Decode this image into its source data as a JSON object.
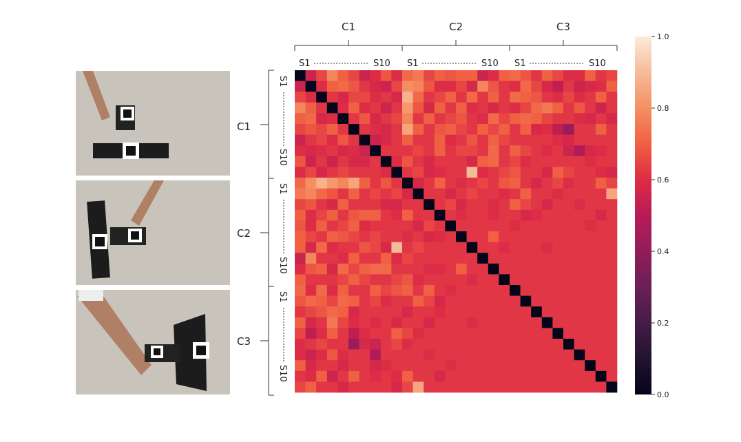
{
  "chart_data": {
    "type": "heatmap",
    "condition_labels": [
      "C1",
      "C2",
      "C3"
    ],
    "subject_first_label": "S1",
    "subject_last_label": "S10",
    "colorbar_ticks": [
      "0.0",
      "0.2",
      "0.4",
      "0.6",
      "0.8",
      "1.0"
    ],
    "colorbar_tick_values": [
      0.0,
      0.2,
      0.4,
      0.6,
      0.8,
      1.0
    ],
    "vmin": 0.0,
    "vmax": 1.0,
    "n": 30,
    "colormap": "rocket",
    "matrix": [
      [
        0.0,
        0.55,
        0.65,
        0.78,
        0.7,
        0.65,
        0.55,
        0.6,
        0.68,
        0.6,
        0.72,
        0.75,
        0.65,
        0.7,
        0.68,
        0.7,
        0.7,
        0.55,
        0.6,
        0.7,
        0.72,
        0.68,
        0.62,
        0.7,
        0.65,
        0.6,
        0.6,
        0.7,
        0.62,
        0.65
      ],
      [
        0.55,
        0.0,
        0.6,
        0.7,
        0.72,
        0.68,
        0.62,
        0.58,
        0.55,
        0.65,
        0.8,
        0.78,
        0.68,
        0.6,
        0.6,
        0.65,
        0.58,
        0.78,
        0.68,
        0.62,
        0.6,
        0.72,
        0.65,
        0.58,
        0.52,
        0.62,
        0.55,
        0.58,
        0.6,
        0.7
      ],
      [
        0.65,
        0.6,
        0.0,
        0.62,
        0.58,
        0.65,
        0.65,
        0.6,
        0.62,
        0.58,
        0.88,
        0.72,
        0.62,
        0.65,
        0.7,
        0.62,
        0.72,
        0.62,
        0.7,
        0.62,
        0.72,
        0.7,
        0.68,
        0.62,
        0.6,
        0.65,
        0.6,
        0.62,
        0.7,
        0.62
      ],
      [
        0.78,
        0.7,
        0.62,
        0.0,
        0.6,
        0.7,
        0.6,
        0.62,
        0.55,
        0.62,
        0.82,
        0.68,
        0.58,
        0.7,
        0.62,
        0.7,
        0.6,
        0.62,
        0.58,
        0.62,
        0.6,
        0.65,
        0.72,
        0.75,
        0.7,
        0.62,
        0.68,
        0.62,
        0.55,
        0.62
      ],
      [
        0.7,
        0.72,
        0.58,
        0.6,
        0.0,
        0.62,
        0.68,
        0.58,
        0.62,
        0.65,
        0.78,
        0.62,
        0.7,
        0.62,
        0.65,
        0.68,
        0.62,
        0.6,
        0.72,
        0.65,
        0.7,
        0.72,
        0.7,
        0.65,
        0.62,
        0.62,
        0.6,
        0.58,
        0.62,
        0.58
      ],
      [
        0.65,
        0.68,
        0.65,
        0.7,
        0.62,
        0.0,
        0.62,
        0.6,
        0.58,
        0.62,
        0.85,
        0.7,
        0.62,
        0.68,
        0.7,
        0.65,
        0.62,
        0.7,
        0.65,
        0.7,
        0.62,
        0.7,
        0.58,
        0.6,
        0.52,
        0.42,
        0.62,
        0.62,
        0.7,
        0.62
      ],
      [
        0.55,
        0.62,
        0.65,
        0.6,
        0.68,
        0.62,
        0.0,
        0.55,
        0.58,
        0.62,
        0.7,
        0.62,
        0.62,
        0.7,
        0.6,
        0.62,
        0.68,
        0.62,
        0.7,
        0.65,
        0.62,
        0.62,
        0.62,
        0.62,
        0.6,
        0.58,
        0.62,
        0.62,
        0.62,
        0.62
      ],
      [
        0.6,
        0.58,
        0.6,
        0.62,
        0.58,
        0.6,
        0.55,
        0.0,
        0.62,
        0.62,
        0.62,
        0.65,
        0.62,
        0.7,
        0.62,
        0.65,
        0.65,
        0.62,
        0.72,
        0.62,
        0.7,
        0.65,
        0.62,
        0.6,
        0.62,
        0.55,
        0.48,
        0.58,
        0.6,
        0.62
      ],
      [
        0.68,
        0.55,
        0.62,
        0.55,
        0.62,
        0.58,
        0.58,
        0.62,
        0.0,
        0.6,
        0.68,
        0.62,
        0.58,
        0.62,
        0.62,
        0.62,
        0.58,
        0.7,
        0.72,
        0.62,
        0.65,
        0.6,
        0.62,
        0.62,
        0.62,
        0.62,
        0.62,
        0.6,
        0.62,
        0.62
      ],
      [
        0.6,
        0.65,
        0.58,
        0.62,
        0.65,
        0.62,
        0.62,
        0.62,
        0.6,
        0.0,
        0.62,
        0.65,
        0.58,
        0.6,
        0.62,
        0.62,
        0.9,
        0.6,
        0.62,
        0.65,
        0.68,
        0.62,
        0.62,
        0.58,
        0.7,
        0.65,
        0.62,
        0.62,
        0.6,
        0.58
      ],
      [
        0.72,
        0.8,
        0.88,
        0.82,
        0.78,
        0.85,
        0.7,
        0.62,
        0.68,
        0.62,
        0.0,
        0.58,
        0.62,
        0.7,
        0.62,
        0.6,
        0.62,
        0.65,
        0.62,
        0.68,
        0.7,
        0.62,
        0.58,
        0.62,
        0.65,
        0.6,
        0.62,
        0.62,
        0.7,
        0.65
      ],
      [
        0.75,
        0.78,
        0.72,
        0.68,
        0.62,
        0.7,
        0.62,
        0.65,
        0.62,
        0.65,
        0.58,
        0.0,
        0.62,
        0.62,
        0.58,
        0.62,
        0.65,
        0.62,
        0.62,
        0.6,
        0.62,
        0.7,
        0.62,
        0.62,
        0.6,
        0.62,
        0.62,
        0.62,
        0.62,
        0.85
      ],
      [
        0.65,
        0.68,
        0.62,
        0.58,
        0.7,
        0.62,
        0.62,
        0.62,
        0.58,
        0.58,
        0.62,
        0.62,
        0.0,
        0.62,
        0.65,
        0.58,
        0.62,
        0.62,
        0.6,
        0.62,
        0.7,
        0.65,
        0.62,
        0.58,
        0.62,
        0.62,
        0.6,
        0.62,
        0.62,
        0.62
      ],
      [
        0.7,
        0.6,
        0.65,
        0.7,
        0.62,
        0.68,
        0.7,
        0.7,
        0.62,
        0.6,
        0.7,
        0.62,
        0.62,
        0.0,
        0.62,
        0.6,
        0.62,
        0.62,
        0.6,
        0.62,
        0.62,
        0.58,
        0.6,
        0.62,
        0.62,
        0.62,
        0.62,
        0.62,
        0.58,
        0.62
      ],
      [
        0.68,
        0.6,
        0.7,
        0.62,
        0.65,
        0.7,
        0.6,
        0.62,
        0.62,
        0.62,
        0.62,
        0.58,
        0.65,
        0.62,
        0.0,
        0.62,
        0.62,
        0.62,
        0.62,
        0.62,
        0.6,
        0.62,
        0.62,
        0.62,
        0.62,
        0.62,
        0.62,
        0.6,
        0.62,
        0.62
      ],
      [
        0.7,
        0.65,
        0.62,
        0.7,
        0.68,
        0.65,
        0.62,
        0.65,
        0.62,
        0.62,
        0.6,
        0.62,
        0.58,
        0.6,
        0.62,
        0.0,
        0.62,
        0.62,
        0.7,
        0.62,
        0.62,
        0.62,
        0.62,
        0.62,
        0.62,
        0.62,
        0.62,
        0.62,
        0.62,
        0.62
      ],
      [
        0.7,
        0.58,
        0.72,
        0.6,
        0.62,
        0.62,
        0.68,
        0.65,
        0.58,
        0.9,
        0.62,
        0.65,
        0.62,
        0.62,
        0.62,
        0.62,
        0.0,
        0.62,
        0.62,
        0.6,
        0.62,
        0.62,
        0.62,
        0.6,
        0.62,
        0.62,
        0.62,
        0.62,
        0.62,
        0.62
      ],
      [
        0.55,
        0.78,
        0.62,
        0.62,
        0.6,
        0.7,
        0.62,
        0.62,
        0.7,
        0.6,
        0.65,
        0.62,
        0.62,
        0.62,
        0.62,
        0.62,
        0.62,
        0.0,
        0.62,
        0.62,
        0.62,
        0.62,
        0.62,
        0.62,
        0.62,
        0.62,
        0.62,
        0.62,
        0.62,
        0.62
      ],
      [
        0.6,
        0.68,
        0.7,
        0.58,
        0.72,
        0.65,
        0.7,
        0.72,
        0.72,
        0.62,
        0.62,
        0.62,
        0.6,
        0.6,
        0.62,
        0.7,
        0.62,
        0.62,
        0.0,
        0.62,
        0.62,
        0.62,
        0.62,
        0.62,
        0.62,
        0.62,
        0.62,
        0.62,
        0.62,
        0.62
      ],
      [
        0.7,
        0.62,
        0.62,
        0.62,
        0.65,
        0.7,
        0.65,
        0.62,
        0.62,
        0.65,
        0.68,
        0.6,
        0.62,
        0.62,
        0.62,
        0.62,
        0.6,
        0.62,
        0.62,
        0.0,
        0.62,
        0.62,
        0.62,
        0.62,
        0.62,
        0.62,
        0.62,
        0.62,
        0.62,
        0.62
      ],
      [
        0.72,
        0.6,
        0.72,
        0.6,
        0.7,
        0.62,
        0.62,
        0.7,
        0.65,
        0.68,
        0.7,
        0.62,
        0.7,
        0.62,
        0.6,
        0.62,
        0.62,
        0.62,
        0.62,
        0.62,
        0.0,
        0.62,
        0.62,
        0.62,
        0.62,
        0.62,
        0.62,
        0.62,
        0.62,
        0.62
      ],
      [
        0.68,
        0.72,
        0.7,
        0.65,
        0.72,
        0.7,
        0.62,
        0.65,
        0.6,
        0.62,
        0.62,
        0.7,
        0.65,
        0.58,
        0.62,
        0.62,
        0.62,
        0.62,
        0.62,
        0.62,
        0.62,
        0.0,
        0.62,
        0.62,
        0.62,
        0.62,
        0.62,
        0.62,
        0.62,
        0.62
      ],
      [
        0.62,
        0.65,
        0.68,
        0.72,
        0.7,
        0.58,
        0.62,
        0.62,
        0.62,
        0.62,
        0.58,
        0.62,
        0.62,
        0.6,
        0.62,
        0.62,
        0.62,
        0.62,
        0.62,
        0.62,
        0.62,
        0.62,
        0.0,
        0.62,
        0.62,
        0.62,
        0.62,
        0.62,
        0.62,
        0.62
      ],
      [
        0.7,
        0.58,
        0.62,
        0.75,
        0.65,
        0.6,
        0.62,
        0.6,
        0.62,
        0.58,
        0.62,
        0.62,
        0.58,
        0.62,
        0.62,
        0.62,
        0.6,
        0.62,
        0.62,
        0.62,
        0.62,
        0.62,
        0.62,
        0.0,
        0.62,
        0.62,
        0.62,
        0.62,
        0.62,
        0.62
      ],
      [
        0.65,
        0.52,
        0.6,
        0.7,
        0.62,
        0.52,
        0.6,
        0.62,
        0.62,
        0.7,
        0.65,
        0.6,
        0.62,
        0.62,
        0.62,
        0.62,
        0.62,
        0.62,
        0.62,
        0.62,
        0.62,
        0.62,
        0.62,
        0.62,
        0.0,
        0.62,
        0.62,
        0.62,
        0.62,
        0.62
      ],
      [
        0.6,
        0.62,
        0.65,
        0.62,
        0.62,
        0.42,
        0.58,
        0.55,
        0.62,
        0.65,
        0.6,
        0.62,
        0.62,
        0.62,
        0.62,
        0.62,
        0.62,
        0.62,
        0.62,
        0.62,
        0.62,
        0.62,
        0.62,
        0.62,
        0.62,
        0.0,
        0.62,
        0.62,
        0.62,
        0.62
      ],
      [
        0.6,
        0.55,
        0.6,
        0.68,
        0.6,
        0.62,
        0.62,
        0.48,
        0.62,
        0.62,
        0.62,
        0.62,
        0.6,
        0.62,
        0.62,
        0.62,
        0.62,
        0.62,
        0.62,
        0.62,
        0.62,
        0.62,
        0.62,
        0.62,
        0.62,
        0.62,
        0.0,
        0.62,
        0.62,
        0.62
      ],
      [
        0.7,
        0.58,
        0.62,
        0.62,
        0.58,
        0.62,
        0.62,
        0.58,
        0.6,
        0.62,
        0.62,
        0.62,
        0.62,
        0.62,
        0.6,
        0.62,
        0.62,
        0.62,
        0.62,
        0.62,
        0.62,
        0.62,
        0.62,
        0.62,
        0.62,
        0.62,
        0.62,
        0.0,
        0.62,
        0.62
      ],
      [
        0.62,
        0.6,
        0.7,
        0.55,
        0.62,
        0.7,
        0.62,
        0.6,
        0.62,
        0.6,
        0.7,
        0.62,
        0.62,
        0.58,
        0.62,
        0.62,
        0.62,
        0.62,
        0.62,
        0.62,
        0.62,
        0.62,
        0.62,
        0.62,
        0.62,
        0.62,
        0.62,
        0.62,
        0.0,
        0.62
      ],
      [
        0.65,
        0.7,
        0.62,
        0.62,
        0.58,
        0.62,
        0.62,
        0.62,
        0.62,
        0.58,
        0.65,
        0.85,
        0.62,
        0.62,
        0.62,
        0.62,
        0.62,
        0.62,
        0.62,
        0.62,
        0.62,
        0.62,
        0.62,
        0.62,
        0.62,
        0.62,
        0.62,
        0.62,
        0.62,
        0.0
      ]
    ]
  },
  "photos": [
    {
      "condition": "C1",
      "marker_icon": "aruco-marker-icon"
    },
    {
      "condition": "C2",
      "marker_icon": "aruco-marker-icon"
    },
    {
      "condition": "C3",
      "marker_icon": "aruco-marker-icon"
    }
  ],
  "colors": {
    "photo_background": "#c9c4bb",
    "object": "#1c1c1c",
    "arm": "#b08066"
  }
}
